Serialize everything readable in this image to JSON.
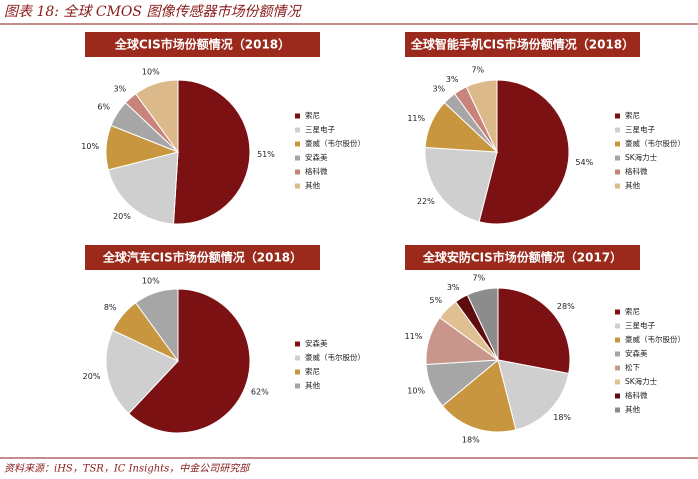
{
  "title": "图表 18: 全球 CMOS 图像传感器市场份额情况",
  "source": "资料来源：iHS，TSR，IC Insights，中金公司研究部",
  "chart_data": [
    {
      "type": "pie",
      "title": "全球CIS市场份额情况（2018）",
      "categories": [
        "索尼",
        "三星电子",
        "豪威（韦尔股份）",
        "安森美",
        "格科微",
        "其他"
      ],
      "values": [
        51,
        20,
        10,
        6,
        3,
        10
      ],
      "value_labels": [
        "51%",
        "20%",
        "10%",
        "6%",
        "3%",
        "10%"
      ],
      "colors": [
        "#7b1113",
        "#cfcfcf",
        "#c8963e",
        "#a6a6a6",
        "#c8847a",
        "#dcb98a"
      ]
    },
    {
      "type": "pie",
      "title": "全球智能手机CIS市场份额情况（2018）",
      "categories": [
        "索尼",
        "三星电子",
        "豪威（韦尔股份）",
        "SK海力士",
        "格科微",
        "其他"
      ],
      "values": [
        54,
        22,
        11,
        3,
        3,
        7
      ],
      "value_labels": [
        "54%",
        "22%",
        "11%",
        "3%",
        "3%",
        "7%"
      ],
      "colors": [
        "#7b1113",
        "#cfcfcf",
        "#c8963e",
        "#a6a6a6",
        "#c8847a",
        "#dcb98a"
      ]
    },
    {
      "type": "pie",
      "title": "全球汽车CIS市场份额情况（2018）",
      "categories": [
        "安森美",
        "豪威（韦尔股份）",
        "索尼",
        "其他"
      ],
      "values": [
        62,
        20,
        8,
        10
      ],
      "value_labels": [
        "62%",
        "20%",
        "8%",
        "10%"
      ],
      "colors": [
        "#7b1113",
        "#cfcfcf",
        "#c8963e",
        "#a6a6a6"
      ]
    },
    {
      "type": "pie",
      "title": "全球安防CIS市场份额情况（2017）",
      "categories": [
        "索尼",
        "三星电子",
        "豪威（韦尔股份）",
        "安森美",
        "松下",
        "SK海力士",
        "格科微",
        "其他"
      ],
      "values": [
        28,
        18,
        18,
        10,
        11,
        5,
        3,
        7
      ],
      "value_labels": [
        "28%",
        "18%",
        "18%",
        "10%",
        "11%",
        "5%",
        "3%",
        "7%"
      ],
      "colors": [
        "#7b1113",
        "#cfcfcf",
        "#c8963e",
        "#a6a6a6",
        "#c8968a",
        "#e0c090",
        "#5e0c0e",
        "#8c8c8c"
      ]
    }
  ]
}
